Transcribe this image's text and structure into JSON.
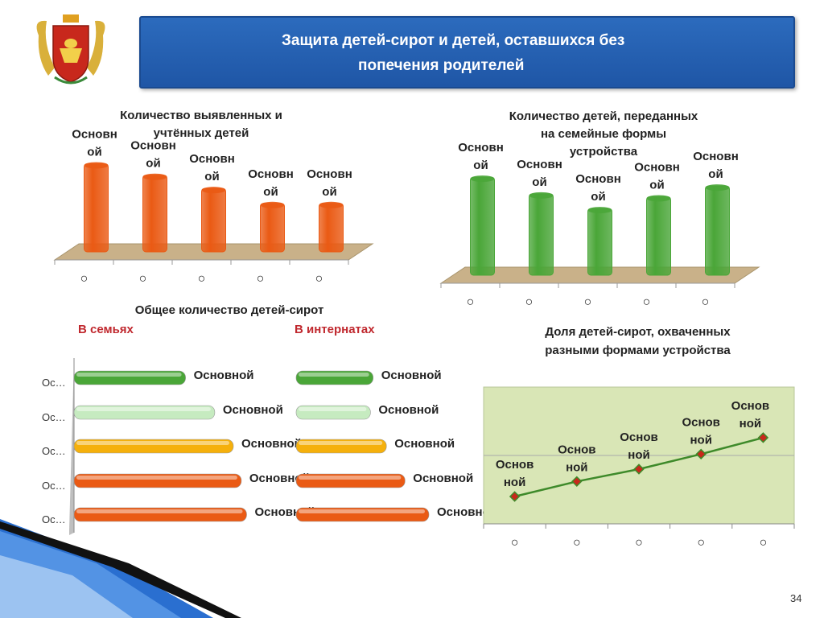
{
  "header": {
    "title_line1": "Защита детей-сирот и детей, оставшихся без",
    "title_line2": "попечения родителей"
  },
  "emblem": {
    "icon": "coat-of-arms-icon"
  },
  "page_number": "34",
  "colors": {
    "title_bg": "#2163b4",
    "orange_bar": "#ea5a14",
    "green_bar": "#4aa638",
    "light_green_bar": "#c6ebc0",
    "yellow_bar": "#f5b00c",
    "line_plot_bg": "#d9e6b6",
    "line_color": "#3e8a2a",
    "marker_color": "#c8281c",
    "floor_color": "#c9b189"
  },
  "chart_data": [
    {
      "type": "bar",
      "title_lines": [
        "Количество выявленных и",
        "учтённых детей"
      ],
      "categories": [
        "○",
        "○",
        "○",
        "○",
        "○"
      ],
      "data_labels": [
        "Основн ой",
        "Основн ой",
        "Основн ой",
        "Основн ой",
        "Основн ой"
      ],
      "values": [
        100,
        87,
        72,
        55,
        55
      ],
      "ylim": [
        0,
        105
      ],
      "grid": false,
      "three_d": true
    },
    {
      "type": "bar",
      "title_lines": [
        "Количество детей, переданных",
        "на семейные формы",
        "устройства"
      ],
      "categories": [
        "○",
        "○",
        "○",
        "○",
        "○"
      ],
      "data_labels": [
        "Основн ой",
        "Основн ой",
        "Основн ой",
        "Основн ой",
        "Основн ой"
      ],
      "values": [
        100,
        83,
        68,
        80,
        91
      ],
      "ylim": [
        0,
        105
      ],
      "grid": false,
      "three_d": true
    },
    {
      "type": "bar",
      "orientation": "horizontal",
      "title": "Общее количество  детей-сирот",
      "group_labels": [
        "В семьях",
        "В интернатах"
      ],
      "categories": [
        "Ос…",
        "Ос…",
        "Ос…",
        "Ос…",
        "Ос…"
      ],
      "series": [
        {
          "values": [
            42,
            53,
            60,
            63,
            65
          ],
          "labels": [
            "Основной",
            "Основной",
            "Основной",
            "Основной",
            "Основной"
          ]
        },
        {
          "values": [
            29,
            28,
            34,
            41,
            50
          ],
          "labels": [
            "Основной",
            "Основной",
            "Основной",
            "Основной",
            "Основной"
          ]
        }
      ],
      "bar_colors": [
        "#4aa638",
        "#c6ebc0",
        "#f5b00c",
        "#ea5a14",
        "#ea5a14"
      ],
      "xlim": [
        0,
        100
      ],
      "grid": false
    },
    {
      "type": "line",
      "title_lines": [
        "Доля детей-сирот,  охваченных",
        "разными формами устройства"
      ],
      "categories": [
        "○",
        "○",
        "○",
        "○",
        "○"
      ],
      "values": [
        20,
        31,
        40,
        51,
        63
      ],
      "data_labels": [
        "Основ ной",
        "Основ ной",
        "Основ ной",
        "Основ ной",
        "Основ ной"
      ],
      "ylim": [
        0,
        100
      ],
      "grid": true
    }
  ]
}
